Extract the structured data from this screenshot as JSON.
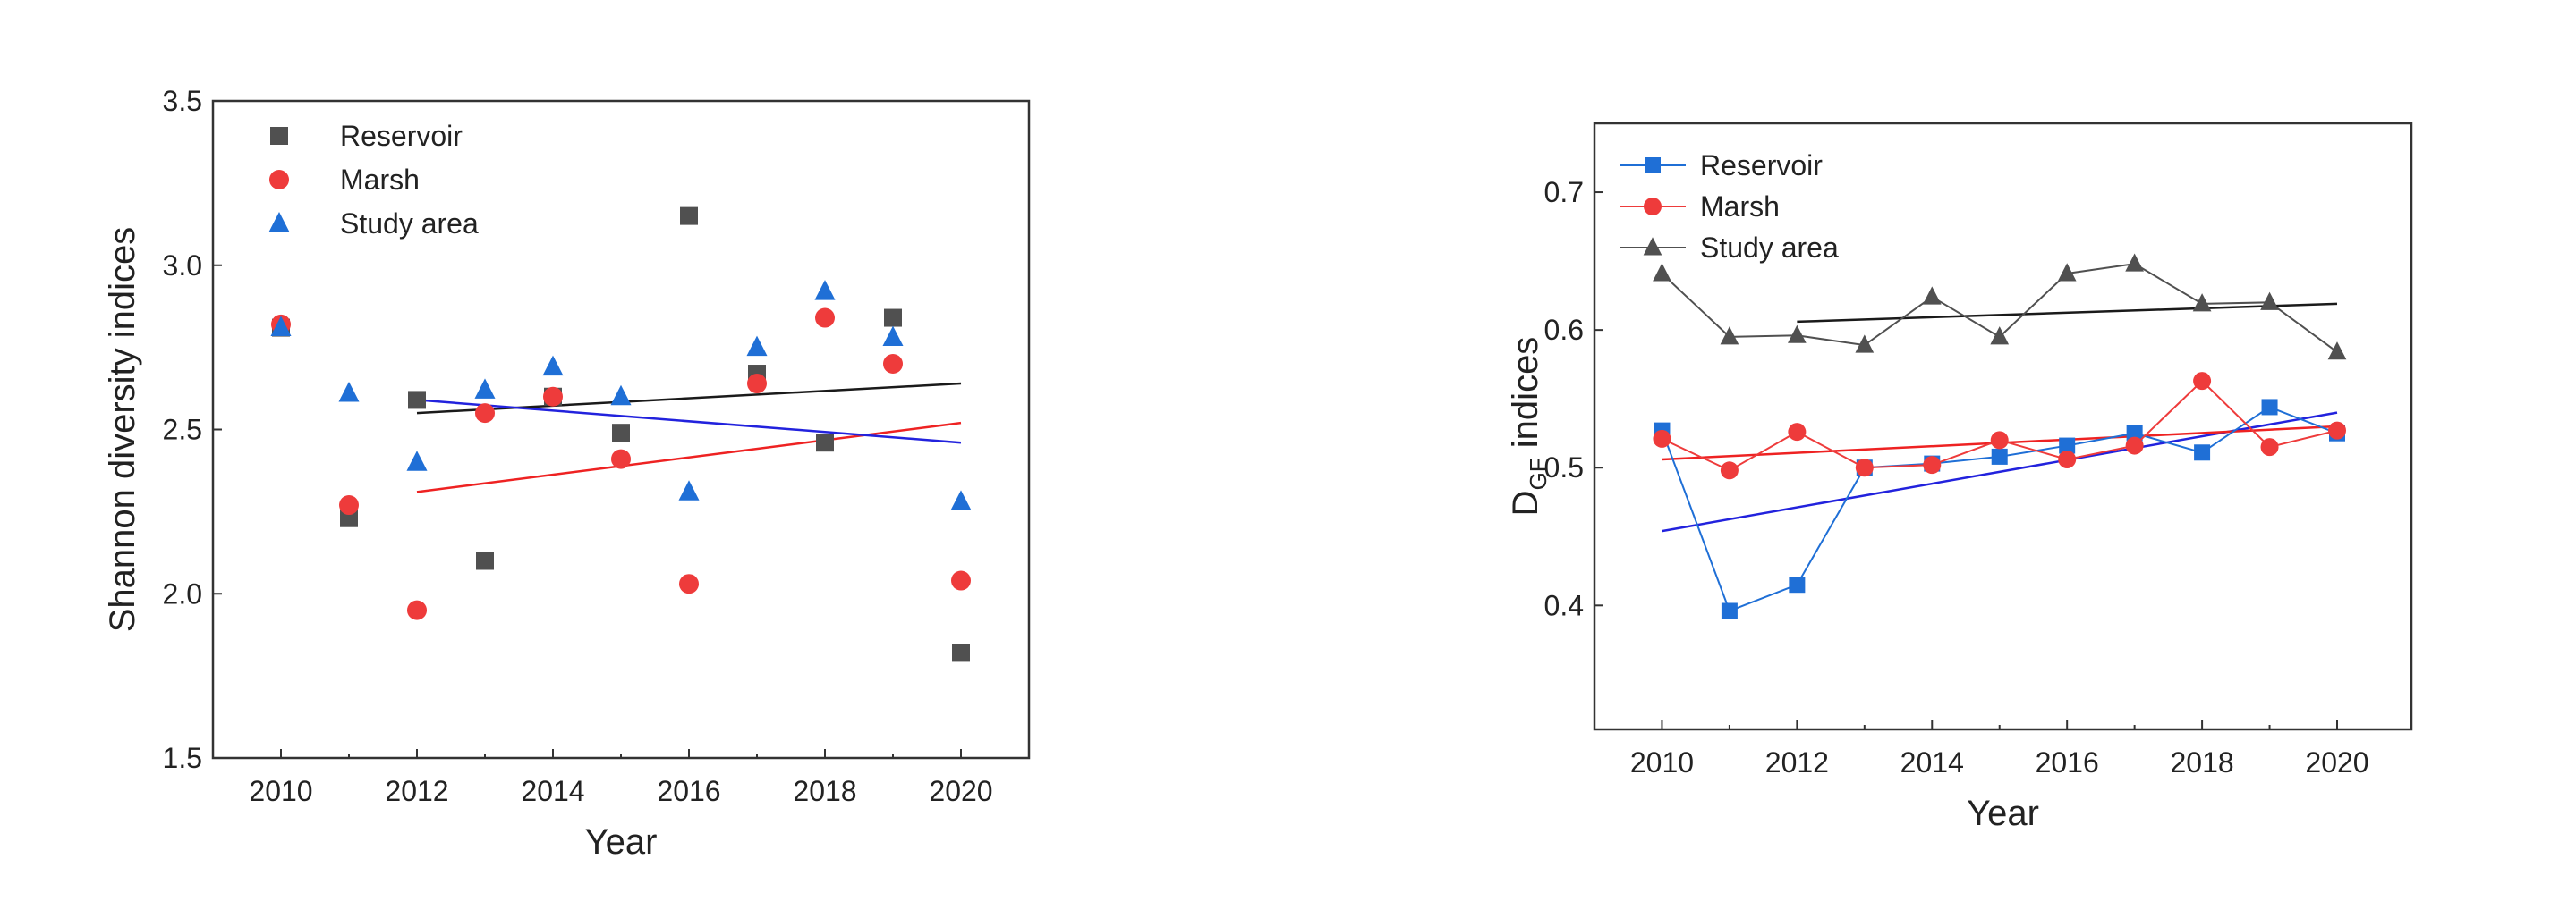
{
  "chart_data": [
    {
      "type": "scatter",
      "title": "",
      "xlabel": "Year",
      "ylabel": "Shannon diversity indices",
      "xlim": [
        2009,
        2021
      ],
      "ylim": [
        1.5,
        3.5
      ],
      "xticks": [
        2010,
        2012,
        2014,
        2016,
        2018,
        2020
      ],
      "yticks": [
        1.5,
        2.0,
        2.5,
        3.0,
        3.5
      ],
      "ytick_labels": [
        "1.5",
        "2.0",
        "2.5",
        "3.0",
        "3.5"
      ],
      "legend_position": "top-left",
      "grid": false,
      "x": [
        2010,
        2011,
        2012,
        2013,
        2014,
        2015,
        2016,
        2017,
        2018,
        2019,
        2020
      ],
      "series": [
        {
          "name": "Reservoir",
          "marker": "square",
          "color": "#505050",
          "values": [
            2.81,
            2.23,
            2.59,
            2.1,
            2.6,
            2.49,
            3.15,
            2.67,
            2.46,
            2.84,
            1.82
          ]
        },
        {
          "name": "Marsh",
          "marker": "circle",
          "color": "#ee3b3b",
          "values": [
            2.82,
            2.27,
            1.95,
            2.55,
            2.6,
            2.41,
            2.03,
            2.64,
            2.84,
            2.7,
            2.04
          ]
        },
        {
          "name": "Study area",
          "marker": "triangle",
          "color": "#1f6fd6",
          "values": [
            2.81,
            2.61,
            2.4,
            2.62,
            2.69,
            2.6,
            2.31,
            2.75,
            2.92,
            2.78,
            2.28
          ]
        }
      ],
      "fit_lines": [
        {
          "name": "Reservoir fit",
          "color": "#1a1a1a",
          "x": [
            2012,
            2020
          ],
          "y": [
            2.55,
            2.64
          ]
        },
        {
          "name": "Marsh fit",
          "color": "#ee2222",
          "x": [
            2012,
            2020
          ],
          "y": [
            2.31,
            2.52
          ]
        },
        {
          "name": "Study area fit",
          "color": "#2222dd",
          "x": [
            2012,
            2020
          ],
          "y": [
            2.59,
            2.46
          ]
        }
      ]
    },
    {
      "type": "line",
      "title": "",
      "xlabel": "Year",
      "ylabel_main": "D",
      "ylabel_sub": "GF",
      "ylabel_rest": "  indices",
      "xlim": [
        2009,
        2021.1
      ],
      "ylim": [
        0.31,
        0.75
      ],
      "xticks": [
        2010,
        2012,
        2014,
        2016,
        2018,
        2020
      ],
      "yticks": [
        0.4,
        0.5,
        0.6,
        0.7
      ],
      "ytick_labels": [
        "0.4",
        "0.5",
        "0.6",
        "0.7"
      ],
      "legend_position": "top-left",
      "grid": false,
      "x": [
        2010,
        2011,
        2012,
        2013,
        2014,
        2015,
        2016,
        2017,
        2018,
        2019,
        2020
      ],
      "series": [
        {
          "name": "Reservoir",
          "marker": "square",
          "color": "#1f6fd6",
          "values": [
            0.527,
            0.396,
            0.415,
            0.5,
            0.503,
            0.508,
            0.516,
            0.525,
            0.511,
            0.544,
            0.525
          ]
        },
        {
          "name": "Marsh",
          "marker": "circle",
          "color": "#ee3b3b",
          "values": [
            0.521,
            0.498,
            0.526,
            0.5,
            0.502,
            0.52,
            0.506,
            0.516,
            0.563,
            0.515,
            0.527
          ]
        },
        {
          "name": "Study area",
          "marker": "triangle",
          "color": "#505050",
          "values": [
            0.641,
            0.595,
            0.596,
            0.589,
            0.624,
            0.595,
            0.641,
            0.648,
            0.619,
            0.62,
            0.584
          ]
        }
      ],
      "fit_lines": [
        {
          "name": "Reservoir fit",
          "color": "#2222dd",
          "x": [
            2010,
            2020
          ],
          "y": [
            0.454,
            0.54
          ]
        },
        {
          "name": "Marsh fit",
          "color": "#ee2222",
          "x": [
            2010,
            2020
          ],
          "y": [
            0.506,
            0.53
          ]
        },
        {
          "name": "Study area fit",
          "color": "#1a1a1a",
          "x": [
            2012,
            2020
          ],
          "y": [
            0.606,
            0.619
          ]
        }
      ]
    }
  ]
}
